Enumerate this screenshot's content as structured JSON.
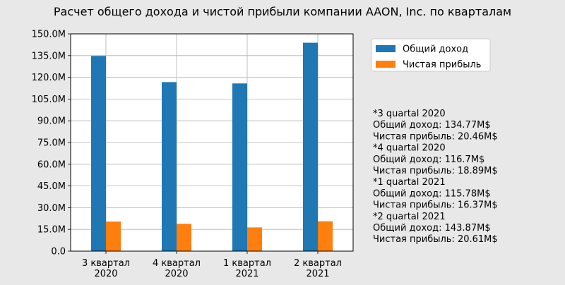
{
  "chart_data": {
    "type": "bar",
    "title": "Расчет общего дохода и чистой прибыли компании AAON, Inc. по кварталам",
    "categories": [
      [
        "3 квартал",
        "2020"
      ],
      [
        "4 квартал",
        "2020"
      ],
      [
        "1 квартал",
        "2021"
      ],
      [
        "2 квартал",
        "2021"
      ]
    ],
    "series": [
      {
        "name": "Общий доход",
        "color": "#1f77b4",
        "values": [
          134.77,
          116.7,
          115.78,
          143.87
        ]
      },
      {
        "name": "Чистая прибыль",
        "color": "#ff7f0e",
        "values": [
          20.46,
          18.89,
          16.37,
          20.61
        ]
      }
    ],
    "y_ticks": [
      "0.0",
      "15.0M",
      "30.0M",
      "45.0M",
      "60.0M",
      "75.0M",
      "90.0M",
      "105.0M",
      "120.0M",
      "135.0M",
      "150.0M"
    ],
    "ylim": [
      0,
      150
    ],
    "grid": true,
    "legend_position": "right",
    "notes": [
      "*3 quartal 2020",
      "Общий доход: 134.77M$",
      "Чистая прибыль: 20.46M$",
      "*4 quartal 2020",
      "Общий доход: 116.7M$",
      "Чистая прибыль: 18.89M$",
      "*1 quartal 2021",
      "Общий доход: 115.78M$",
      "Чистая прибыль: 16.37M$",
      "*2 quartal 2021",
      "Общий доход: 143.87M$",
      "Чистая прибыль: 20.61M$"
    ]
  }
}
